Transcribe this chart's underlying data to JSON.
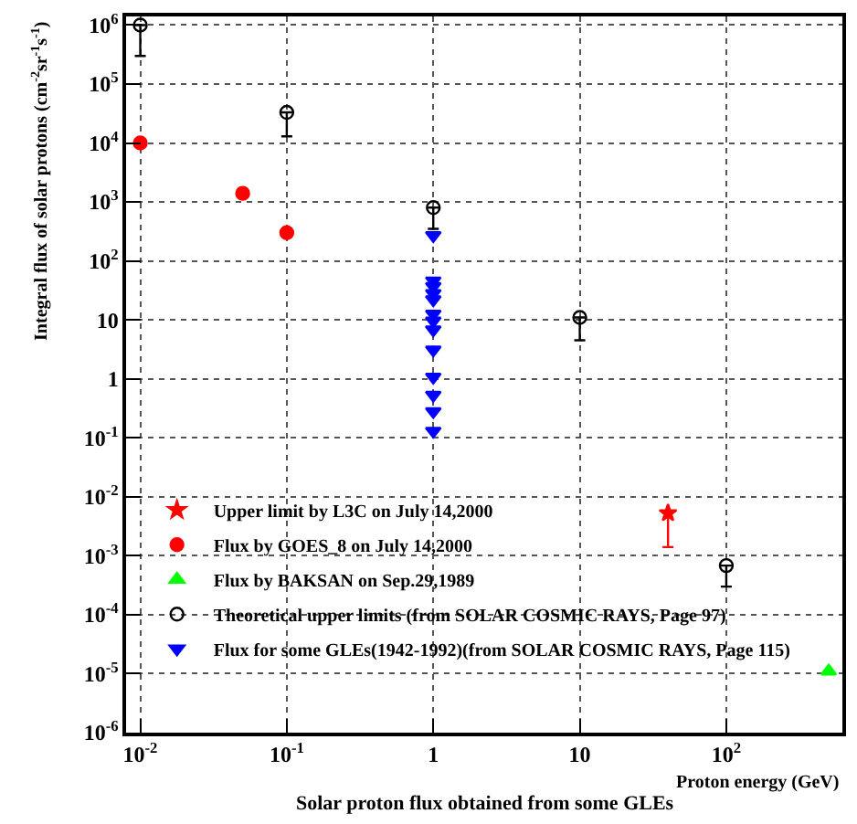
{
  "chart_data": {
    "type": "scatter",
    "title": "Solar proton flux obtained from some GLEs",
    "xlabel": "Proton energy (GeV)",
    "ylabel": "Integral flux of solar protons (cm$^{-2}$sr$^{-1}$s$^{-1}$)",
    "log": "xy",
    "grid": true,
    "legend": "bottom left",
    "xlim": [
      0.008,
      620
    ],
    "ylim": [
      1e-06,
      1400000
    ],
    "xticks": [
      {
        "value": 0.01,
        "label": "10$^{-2}$"
      },
      {
        "value": 0.1,
        "label": "10$^{-1}$"
      },
      1,
      10,
      {
        "value": 100,
        "label": "10$^{2}$"
      }
    ],
    "yticks": [
      {
        "value": 1000000,
        "label": "10$^{6}$"
      },
      {
        "value": 100000,
        "label": "10$^{5}$"
      },
      {
        "value": 10000,
        "label": "10$^{4}$"
      },
      {
        "value": 1000,
        "label": "10$^{3}$"
      },
      {
        "value": 100,
        "label": "10$^{2}$"
      },
      10,
      1,
      {
        "value": 0.1,
        "label": "10$^{-1}$"
      },
      {
        "value": 0.01,
        "label": "10$^{-2}$"
      },
      {
        "value": 0.001,
        "label": "10$^{-3}$"
      },
      {
        "value": 0.0001,
        "label": "10$^{-4}$"
      },
      {
        "value": 1e-05,
        "label": "10$^{-5}$"
      },
      {
        "value": 1e-06,
        "label": "10$^{-6}$"
      }
    ],
    "series": [
      {
        "name": "Upper limit by L3C on July 14,2000",
        "color": "#ff0000",
        "marker": "star",
        "x": [
          40
        ],
        "values": [
          0.0053
        ],
        "errors": [
          [
            0.0014,
            0.0053
          ]
        ]
      },
      {
        "name": "Flux by GOES_8 on July 14,2000",
        "color": "#ff0000",
        "marker": "circle",
        "x": [
          0.01,
          0.05,
          0.1
        ],
        "values": [
          10000,
          1400,
          300
        ]
      },
      {
        "name": "Flux by BAKSAN on Sep.29,1989",
        "color": "#00ff00",
        "marker": "triangle",
        "x": [
          500
        ],
        "values": [
          1.1e-05
        ]
      },
      {
        "name": "Theoretical upper limits (from SOLAR COSMIC RAYS, Page 97)",
        "color": "#000000",
        "marker": "open circle",
        "x": [
          0.01,
          0.1,
          1,
          10,
          100
        ],
        "values": [
          1000000,
          33000,
          800,
          11,
          0.00068
        ],
        "errors": [
          [
            300000,
            1000000
          ],
          [
            13000,
            33000
          ],
          [
            350,
            800
          ],
          [
            4.5,
            11
          ],
          [
            0.0003,
            0.00068
          ]
        ]
      },
      {
        "name": "Flux for some GLEs(1942-1992)(from SOLAR COSMIC RAYS, Page 115)",
        "color": "#0000ff",
        "marker": "triangle down",
        "x": [
          1,
          1,
          1,
          1,
          1,
          1,
          1,
          1,
          1,
          1,
          1,
          1,
          1
        ],
        "values": [
          270,
          46,
          37,
          28,
          22,
          12.6,
          9.6,
          6.8,
          3.1,
          1.07,
          0.53,
          0.28,
          0.13
        ]
      }
    ]
  }
}
